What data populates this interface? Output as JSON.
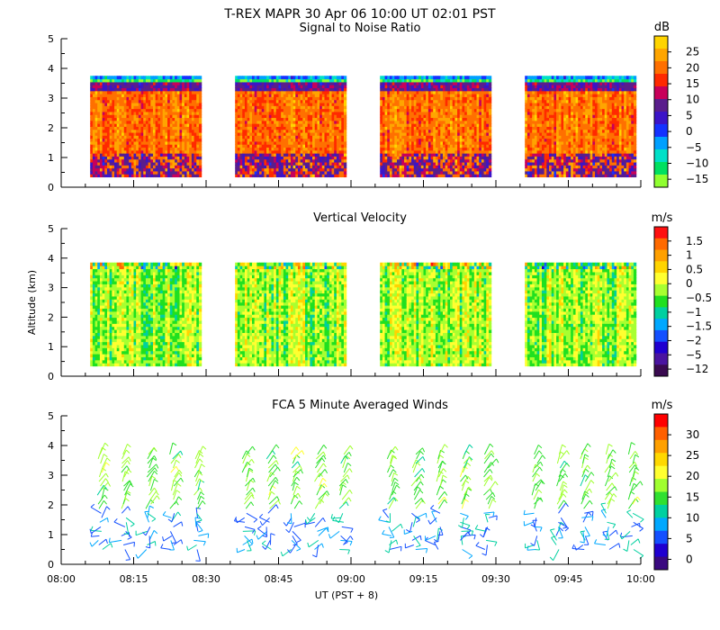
{
  "header": {
    "title": "T-REX   MAPR 30 Apr 06   10:00 UT   02:01   PST"
  },
  "chart_data": [
    {
      "id": "snr",
      "type": "heatmap",
      "title": "Signal to Noise Ratio",
      "ylabel": "",
      "ylim": [
        0,
        5
      ],
      "yticks": [
        0,
        1,
        2,
        3,
        4,
        5
      ],
      "xlim": [
        "08:00",
        "10:00"
      ],
      "xticks": [
        "08:00",
        "08:15",
        "08:30",
        "08:45",
        "09:00",
        "09:15",
        "09:30",
        "09:45",
        "10:00"
      ],
      "data_blocks": [
        {
          "start_min": 6,
          "end_min": 29
        },
        {
          "start_min": 36,
          "end_min": 59
        },
        {
          "start_min": 66,
          "end_min": 89
        },
        {
          "start_min": 96,
          "end_min": 119
        }
      ],
      "altitude_range_km": [
        0.35,
        3.75
      ],
      "colorbar": {
        "unit": "dB",
        "tick_labels": [
          "25",
          "20",
          "15",
          "10",
          "5",
          "0",
          "−5",
          "−10",
          "−15"
        ],
        "colors": [
          "#ffd400",
          "#ffa500",
          "#ff7000",
          "#ff2a00",
          "#c8005a",
          "#5a1e8c",
          "#3c14c8",
          "#1432ff",
          "#00a0ff",
          "#00e0c8",
          "#00e060",
          "#90ff30"
        ]
      }
    },
    {
      "id": "vv",
      "type": "heatmap",
      "title": "Vertical Velocity",
      "ylabel": "Altitude (km)",
      "ylim": [
        0,
        5
      ],
      "yticks": [
        0,
        1,
        2,
        3,
        4,
        5
      ],
      "xlim": [
        "08:00",
        "10:00"
      ],
      "xticks": [
        "08:00",
        "08:15",
        "08:30",
        "08:45",
        "09:00",
        "09:15",
        "09:30",
        "09:45",
        "10:00"
      ],
      "data_blocks": [
        {
          "start_min": 6,
          "end_min": 29
        },
        {
          "start_min": 36,
          "end_min": 59
        },
        {
          "start_min": 66,
          "end_min": 89
        },
        {
          "start_min": 96,
          "end_min": 119
        }
      ],
      "altitude_range_km": [
        0.35,
        3.85
      ],
      "colorbar": {
        "unit": "m/s",
        "tick_labels": [
          "1.5",
          "1",
          "0.5",
          "0",
          "−0.5",
          "−1",
          "−1.5",
          "−2",
          "−5",
          "−12"
        ],
        "colors": [
          "#ff1010",
          "#ff6a00",
          "#ffa000",
          "#ffd400",
          "#ffff30",
          "#a8ff30",
          "#20e020",
          "#00d0a0",
          "#00a8ff",
          "#1450ff",
          "#2000d0",
          "#4a14a0",
          "#3a0a50"
        ]
      }
    },
    {
      "id": "winds",
      "type": "barbs",
      "title": "FCA 5 Minute Averaged Winds",
      "ylabel": "",
      "ylim": [
        0,
        5
      ],
      "yticks": [
        0,
        1,
        2,
        3,
        4,
        5
      ],
      "xlim": [
        "08:00",
        "10:00"
      ],
      "xticks": [
        "08:00",
        "08:15",
        "08:30",
        "08:45",
        "09:00",
        "09:15",
        "09:30",
        "09:45",
        "10:00"
      ],
      "xlabel": "UT  (PST + 8)",
      "profile_times_min": [
        8,
        13,
        18,
        23,
        28,
        38,
        43,
        48,
        53,
        58,
        68,
        73,
        78,
        83,
        88,
        98,
        103,
        108,
        113,
        118
      ],
      "altitude_range_km": [
        0.5,
        3.7
      ],
      "colorbar": {
        "unit": "m/s",
        "tick_labels": [
          "30",
          "25",
          "20",
          "15",
          "10",
          "5",
          "0"
        ],
        "colors": [
          "#ff0000",
          "#ff6000",
          "#ffa000",
          "#ffd800",
          "#ffff30",
          "#a0ff30",
          "#30e030",
          "#00d0a0",
          "#00a8ff",
          "#1450ff",
          "#2000d0",
          "#3a0a80"
        ]
      }
    }
  ]
}
